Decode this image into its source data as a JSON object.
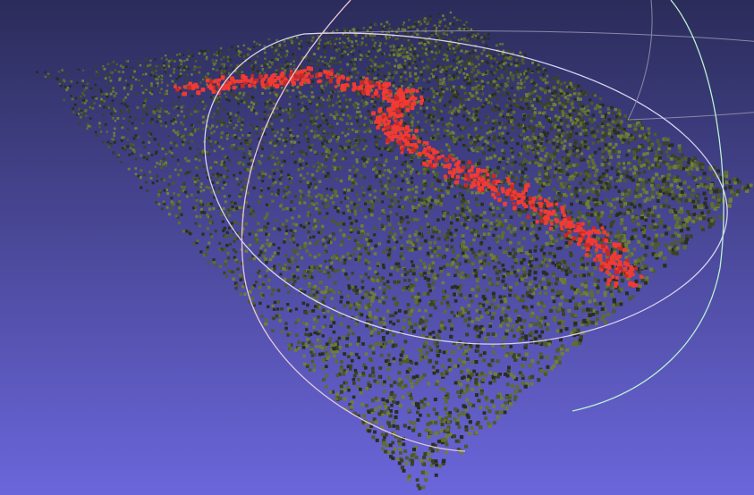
{
  "viewport": {
    "background_top": "#2b2c5a",
    "background_bottom": "#6b66db"
  },
  "point_cloud": {
    "base_colors": [
      "#2a2d22",
      "#3c4227",
      "#4e5a2c",
      "#5f6d33",
      "#6f7d3a"
    ],
    "selection_color": "#f03a33",
    "selection_color_dark": "#c42a28"
  },
  "trackball": {
    "ring_x_color": "#e8c7d8",
    "ring_y_color": "#b9f0d2",
    "ring_z_color": "#d9d2ee",
    "ring_back_color": "#8d87a8"
  }
}
